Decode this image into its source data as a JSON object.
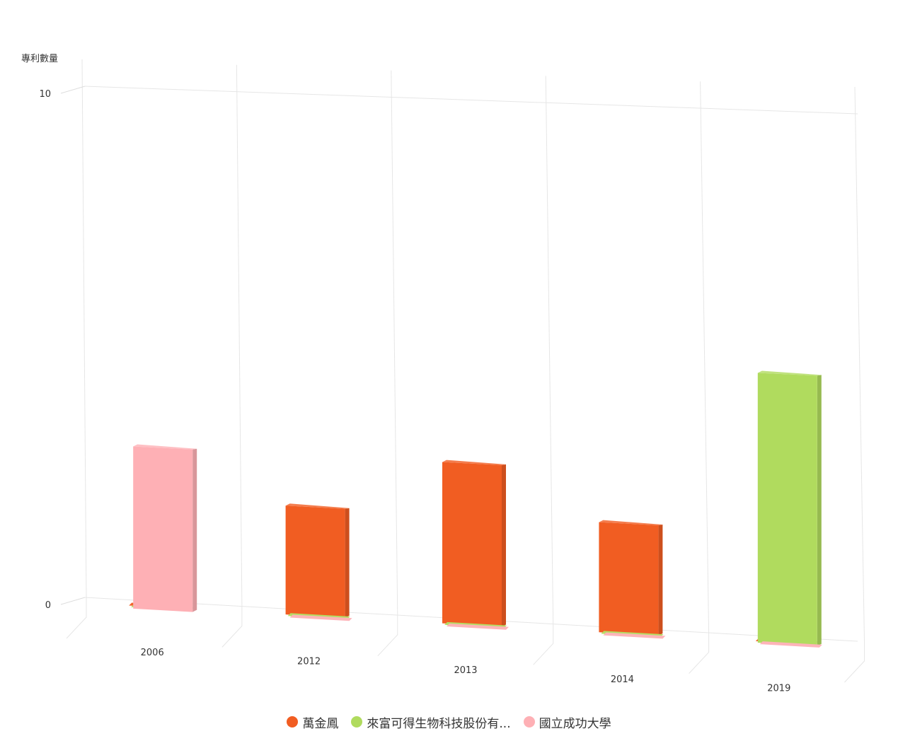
{
  "chart_data": {
    "type": "bar",
    "title": "",
    "ylabel": "專利數量",
    "xlabel": "",
    "ylim": [
      0,
      10
    ],
    "yticks": [
      "0",
      "10"
    ],
    "categories": [
      "2006",
      "2012",
      "2013",
      "2014",
      "2019"
    ],
    "series": [
      {
        "name": "萬金鳳",
        "color": "#f15d22",
        "values": [
          0,
          2,
          3,
          2,
          0
        ]
      },
      {
        "name": "來富可得生物科技股份有...",
        "color": "#b0db5e",
        "values": [
          0,
          0,
          0,
          0,
          5
        ]
      },
      {
        "name": "國立成功大學",
        "color": "#feb0b5",
        "values": [
          3,
          0,
          0,
          0,
          0
        ]
      }
    ],
    "grid": true,
    "legend_position": "bottom",
    "style": "3d-column"
  }
}
